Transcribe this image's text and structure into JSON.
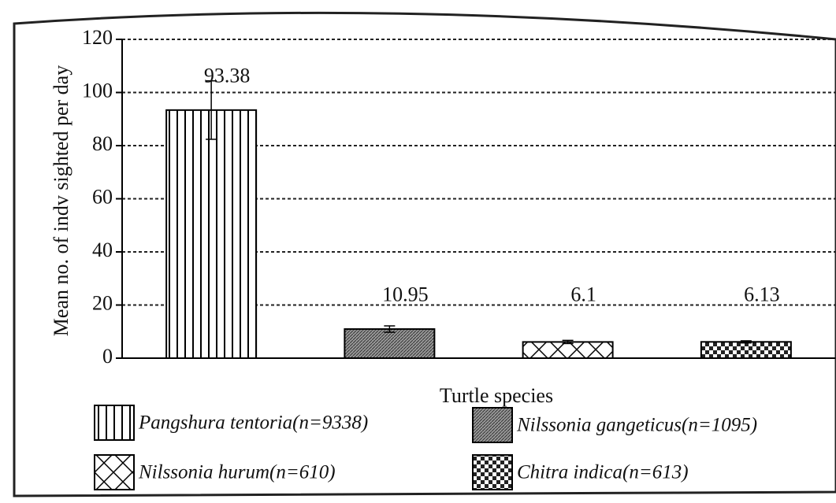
{
  "chart_data": {
    "type": "bar",
    "x_label": "Turtle species",
    "y_label": "Mean no. of indv sighted per day",
    "categories": [
      "Pangshura tentoria(n=9338)",
      "Nilssonia gangeticus(n=1095)",
      "Nilssonia hurum(n=610)",
      "Chitra indica(n=613)"
    ],
    "values": [
      93.38,
      10.95,
      6.1,
      6.13
    ],
    "errors": [
      11,
      1.2,
      0.6,
      0.4
    ],
    "patterns": [
      "vertical",
      "dense",
      "diagonal-cross",
      "checker"
    ],
    "color": "#000000",
    "ylim": [
      0,
      120
    ],
    "yticks": [
      0,
      20,
      40,
      60,
      80,
      100,
      120
    ],
    "grid": true
  }
}
